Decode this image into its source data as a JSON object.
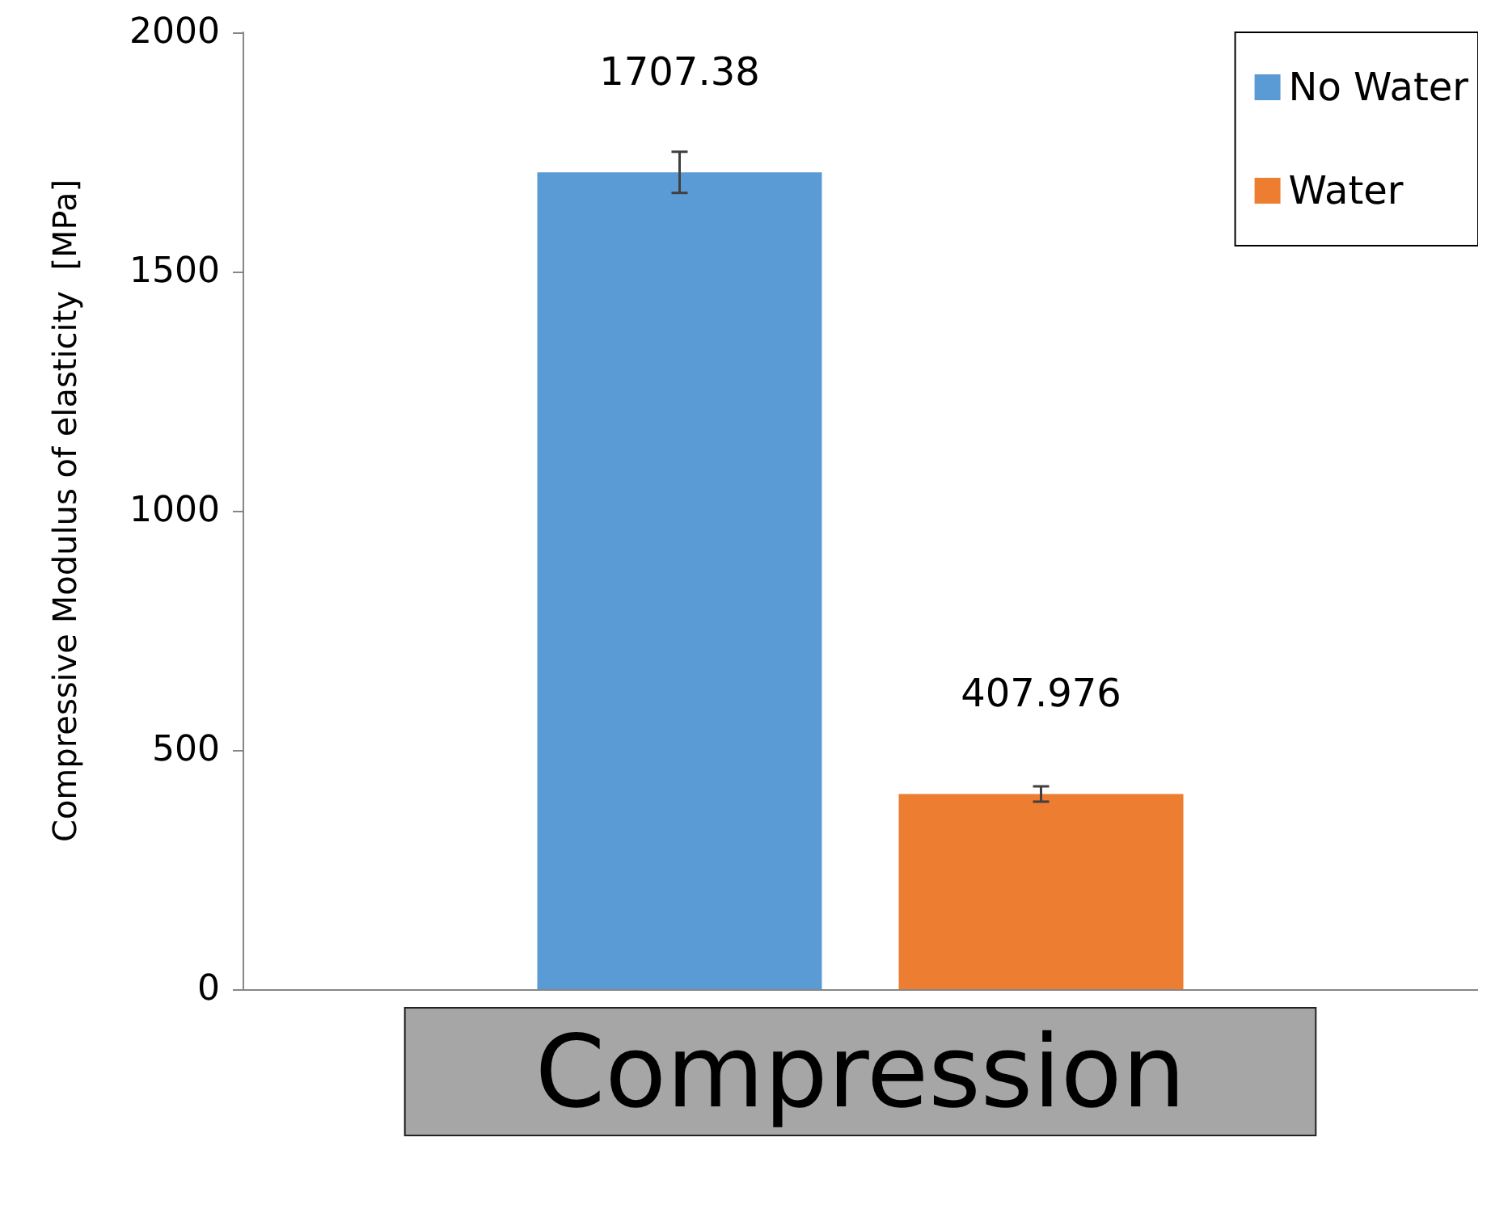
{
  "chart_data": {
    "type": "bar",
    "ylabel": "Compressive Modulus of elasticity  [MPa]",
    "categories": [
      "Compression"
    ],
    "series": [
      {
        "name": "No Water",
        "color": "#5b9bd5",
        "values": [
          1707.38
        ],
        "errors": [
          43
        ]
      },
      {
        "name": "Water",
        "color": "#ed7d31",
        "values": [
          407.976
        ],
        "errors": [
          16
        ]
      }
    ],
    "ylim": [
      0,
      2000
    ],
    "yticks": [
      0,
      500,
      1000,
      1500,
      2000
    ],
    "grid": false,
    "legend": "top right",
    "data_labels": true
  }
}
